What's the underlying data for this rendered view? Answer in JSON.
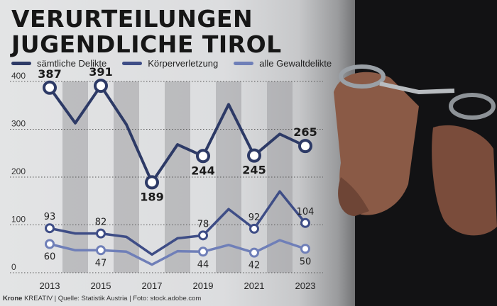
{
  "header": {
    "title_line1": "VERURTEILUNGEN",
    "title_line2": "JUGENDLICHE TIROL"
  },
  "legend": [
    {
      "label": "sämtliche Delikte",
      "color": "#2d3a66"
    },
    {
      "label": "Körperverletzung",
      "color": "#3e4d86"
    },
    {
      "label": "alle Gewaltdelikte",
      "color": "#6f7fb8"
    }
  ],
  "footer": {
    "brand": "Krone",
    "text": "KREATIV | Quelle: Statistik Austria | Foto: stock.adobe.com"
  },
  "chart_data": {
    "type": "line",
    "x": [
      2013,
      2014,
      2015,
      2016,
      2017,
      2018,
      2019,
      2020,
      2021,
      2022,
      2023
    ],
    "x_tick_labels": [
      "2013",
      "2015",
      "2017",
      "2019",
      "2021",
      "2023"
    ],
    "y_tick_labels": [
      "0",
      "100",
      "200",
      "300",
      "400"
    ],
    "ylim": [
      0,
      400
    ],
    "grid": true,
    "series": [
      {
        "name": "sämtliche Delikte",
        "color": "#2d3a66",
        "values": [
          387,
          313,
          391,
          310,
          189,
          268,
          244,
          352,
          245,
          290,
          265
        ],
        "labeled": [
          0,
          2,
          4,
          6,
          8,
          10
        ]
      },
      {
        "name": "Körperverletzung",
        "color": "#3e4d86",
        "values": [
          93,
          82,
          82,
          75,
          38,
          72,
          78,
          133,
          92,
          170,
          104
        ],
        "labeled": [
          0,
          2,
          6,
          8,
          10
        ]
      },
      {
        "name": "alle Gewaltdelikte",
        "color": "#6f7fb8",
        "values": [
          60,
          47,
          47,
          44,
          17,
          45,
          44,
          58,
          42,
          68,
          50
        ],
        "labeled": [
          0,
          2,
          6,
          8,
          10
        ]
      }
    ]
  }
}
